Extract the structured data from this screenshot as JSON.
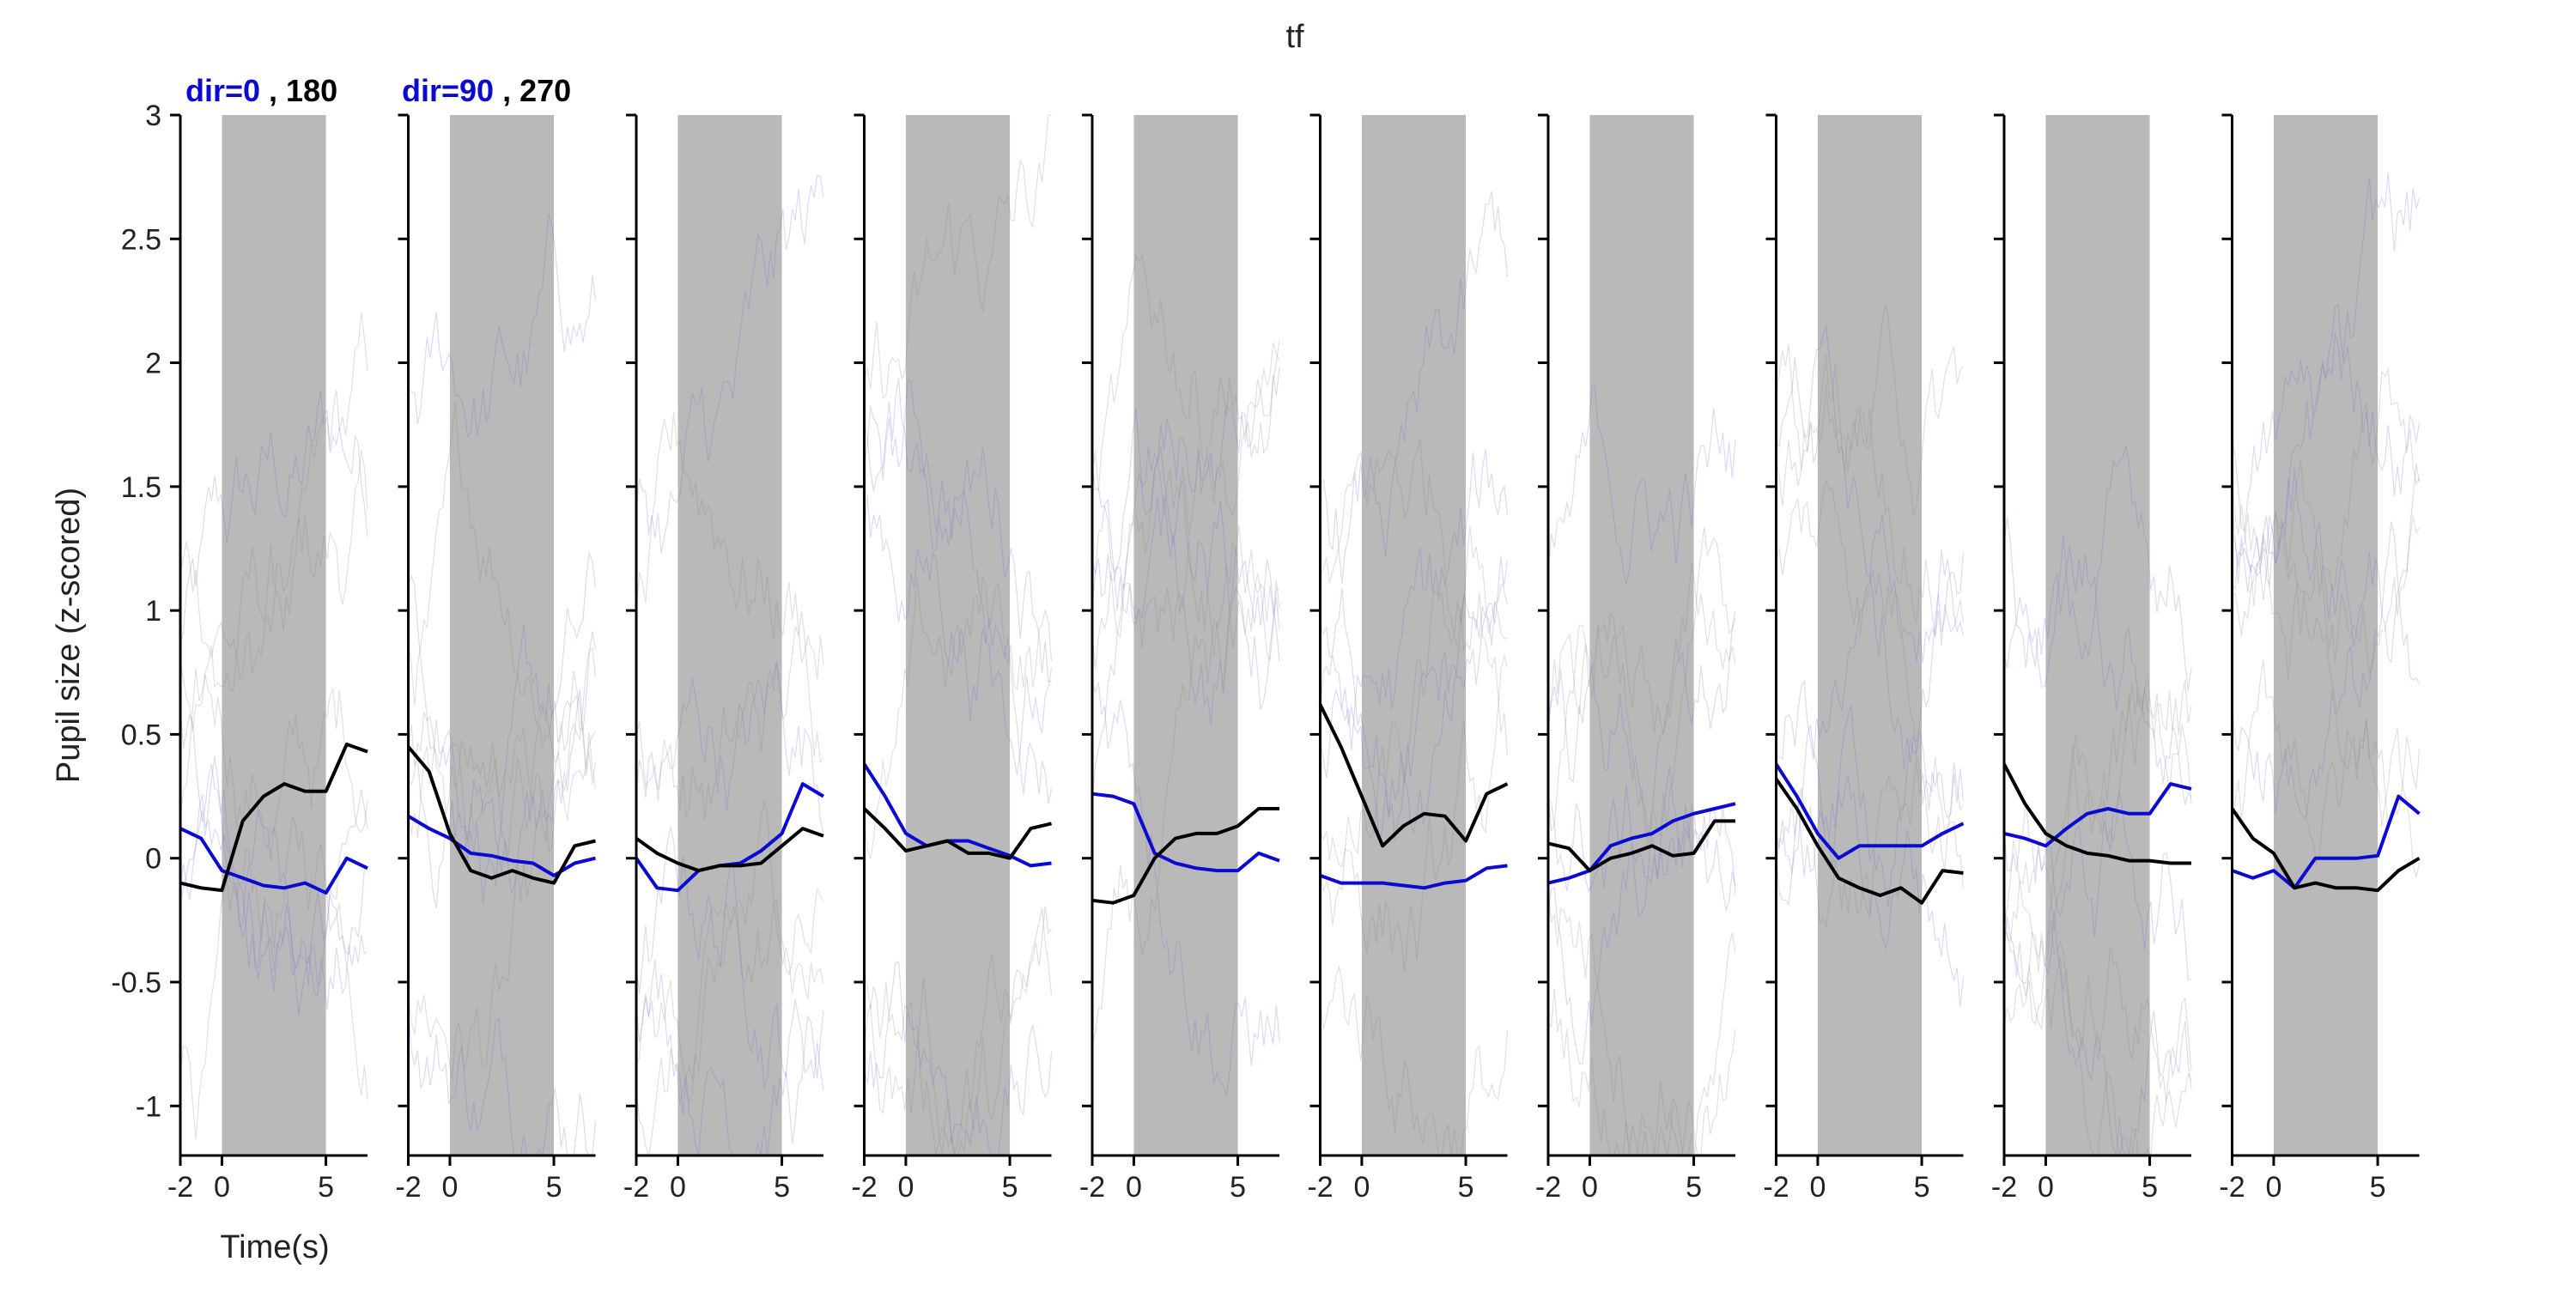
{
  "chart_data": {
    "type": "line",
    "title": "tf",
    "ylabel": "Pupil size (z-scored)",
    "xlabel": "Time(s)",
    "xlim": [
      -2,
      7
    ],
    "ylim": [
      -1.2,
      3
    ],
    "x_ticks": [
      -2,
      0,
      5
    ],
    "x_tick_labels": [
      "-2",
      "0",
      "5"
    ],
    "y_ticks": [
      -1,
      -0.5,
      0,
      0.5,
      1,
      1.5,
      2,
      2.5,
      3
    ],
    "y_tick_labels": [
      "-1",
      "-0.5",
      "0",
      "0.5",
      "1",
      "1.5",
      "2",
      "2.5",
      "3"
    ],
    "stimulus_window": [
      0,
      5
    ],
    "grid": false,
    "colors": {
      "blue": "#0a0ad2",
      "black": "#000000",
      "stimulus_shading": "#b9b9b9",
      "faint_blue": "#7070d8",
      "faint_black": "#888888"
    },
    "legend": {
      "left": {
        "blue_label": "dir=0",
        "black_label": ", 180"
      },
      "right": {
        "blue_label": "dir=90",
        "black_label": ", 270"
      }
    },
    "x": [
      -2,
      -1,
      0,
      1,
      2,
      3,
      4,
      5,
      6,
      7
    ],
    "panels": [
      {
        "blue": [
          0.12,
          0.08,
          -0.05,
          -0.08,
          -0.11,
          -0.12,
          -0.1,
          -0.14,
          0.0,
          -0.04
        ],
        "black": [
          -0.1,
          -0.12,
          -0.13,
          0.15,
          0.25,
          0.3,
          0.27,
          0.27,
          0.46,
          0.43
        ]
      },
      {
        "blue": [
          0.17,
          0.12,
          0.08,
          0.02,
          0.01,
          -0.01,
          -0.02,
          -0.07,
          -0.02,
          0.0
        ],
        "black": [
          0.45,
          0.35,
          0.1,
          -0.05,
          -0.08,
          -0.05,
          -0.08,
          -0.1,
          0.05,
          0.07
        ]
      },
      {
        "blue": [
          0.0,
          -0.12,
          -0.13,
          -0.05,
          -0.03,
          -0.02,
          0.03,
          0.1,
          0.3,
          0.25
        ],
        "black": [
          0.08,
          0.02,
          -0.02,
          -0.05,
          -0.03,
          -0.03,
          -0.02,
          0.05,
          0.12,
          0.09
        ]
      },
      {
        "blue": [
          0.38,
          0.25,
          0.1,
          0.05,
          0.07,
          0.07,
          0.04,
          0.01,
          -0.03,
          -0.02
        ],
        "black": [
          0.2,
          0.12,
          0.03,
          0.05,
          0.07,
          0.02,
          0.02,
          0.0,
          0.12,
          0.14
        ]
      },
      {
        "blue": [
          0.26,
          0.25,
          0.22,
          0.02,
          -0.02,
          -0.04,
          -0.05,
          -0.05,
          0.02,
          -0.01
        ],
        "black": [
          -0.17,
          -0.18,
          -0.15,
          0.0,
          0.08,
          0.1,
          0.1,
          0.13,
          0.2,
          0.2
        ]
      },
      {
        "blue": [
          -0.07,
          -0.1,
          -0.1,
          -0.1,
          -0.11,
          -0.12,
          -0.1,
          -0.09,
          -0.04,
          -0.03
        ],
        "black": [
          0.62,
          0.45,
          0.25,
          0.05,
          0.13,
          0.18,
          0.17,
          0.07,
          0.26,
          0.3
        ]
      },
      {
        "blue": [
          -0.1,
          -0.08,
          -0.05,
          0.05,
          0.08,
          0.1,
          0.15,
          0.18,
          0.2,
          0.22
        ],
        "black": [
          0.06,
          0.04,
          -0.05,
          0.0,
          0.02,
          0.05,
          0.01,
          0.02,
          0.15,
          0.15
        ]
      },
      {
        "blue": [
          0.38,
          0.25,
          0.1,
          0.0,
          0.05,
          0.05,
          0.05,
          0.05,
          0.1,
          0.14
        ],
        "black": [
          0.32,
          0.2,
          0.05,
          -0.08,
          -0.12,
          -0.15,
          -0.12,
          -0.18,
          -0.05,
          -0.06
        ]
      },
      {
        "blue": [
          0.1,
          0.08,
          0.05,
          0.12,
          0.18,
          0.2,
          0.18,
          0.18,
          0.3,
          0.28
        ],
        "black": [
          0.38,
          0.22,
          0.1,
          0.05,
          0.02,
          0.01,
          -0.01,
          -0.01,
          -0.02,
          -0.02
        ]
      },
      {
        "blue": [
          -0.05,
          -0.08,
          -0.05,
          -0.12,
          0.0,
          0.0,
          0.0,
          0.01,
          0.25,
          0.18
        ],
        "black": [
          0.2,
          0.08,
          0.02,
          -0.12,
          -0.1,
          -0.12,
          -0.12,
          -0.13,
          -0.05,
          0.0
        ]
      }
    ]
  }
}
